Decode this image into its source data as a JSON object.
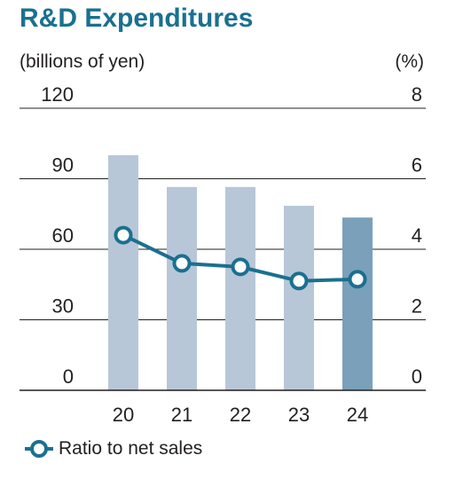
{
  "chart_data": {
    "type": "bar",
    "title": "R&D Expenditures",
    "left_unit": "(billions of yen)",
    "right_unit": "(%)",
    "categories": [
      "20",
      "21",
      "22",
      "23",
      "24"
    ],
    "left_axis": {
      "ticks": [
        "120",
        "90",
        "60",
        "30",
        "0"
      ],
      "ylim": [
        0,
        120
      ]
    },
    "right_axis": {
      "ticks": [
        "8",
        "6",
        "4",
        "2",
        "0"
      ],
      "ylim": [
        0,
        8
      ]
    },
    "grid": true,
    "legend_position": "bottom-left",
    "series": [
      {
        "type": "bar",
        "axis": "left",
        "values": [
          100,
          86.5,
          86.5,
          78.5,
          73.5
        ],
        "colors": [
          "#b7c7d8",
          "#b7c7d8",
          "#b7c7d8",
          "#b7c7d8",
          "#7aa0ba"
        ]
      },
      {
        "type": "line",
        "name": "Ratio to net sales",
        "axis": "right",
        "values": [
          4.4,
          3.6,
          3.5,
          3.1,
          3.15
        ],
        "color": "#1a7090"
      }
    ]
  }
}
